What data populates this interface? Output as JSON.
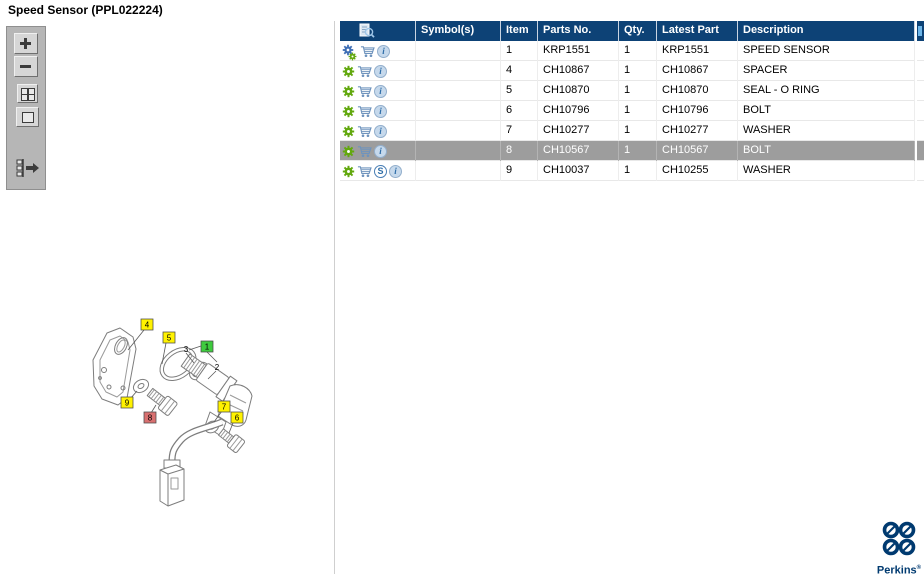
{
  "window": {
    "title": "Speed Sensor (PPL022224)"
  },
  "toolbar": {
    "buttons": [
      {
        "name": "zoom-in"
      },
      {
        "name": "zoom-out"
      },
      {
        "name": "tile-view"
      },
      {
        "name": "fit-view"
      },
      {
        "name": "expand-list"
      }
    ]
  },
  "table": {
    "header_icon": "parts-lookup-icon",
    "columns": [
      {
        "key": "icons",
        "label": ""
      },
      {
        "key": "symbol",
        "label": "Symbol(s)"
      },
      {
        "key": "item",
        "label": "Item"
      },
      {
        "key": "parts_no",
        "label": "Parts No."
      },
      {
        "key": "qty",
        "label": "Qty."
      },
      {
        "key": "latest_part_no",
        "label": "Latest Part No."
      },
      {
        "key": "description",
        "label": "Description"
      }
    ],
    "rows": [
      {
        "icons": [
          "gear-multi",
          "cart",
          "info"
        ],
        "symbol": "",
        "item": "1",
        "parts_no": "KRP1551",
        "qty": "1",
        "latest_part_no": "KRP1551",
        "description": "SPEED SENSOR",
        "selected": false
      },
      {
        "icons": [
          "gear",
          "cart",
          "info"
        ],
        "symbol": "",
        "item": "4",
        "parts_no": "CH10867",
        "qty": "1",
        "latest_part_no": "CH10867",
        "description": "SPACER",
        "selected": false
      },
      {
        "icons": [
          "gear",
          "cart",
          "info"
        ],
        "symbol": "",
        "item": "5",
        "parts_no": "CH10870",
        "qty": "1",
        "latest_part_no": "CH10870",
        "description": "SEAL - O RING",
        "selected": false
      },
      {
        "icons": [
          "gear",
          "cart",
          "info"
        ],
        "symbol": "",
        "item": "6",
        "parts_no": "CH10796",
        "qty": "1",
        "latest_part_no": "CH10796",
        "description": "BOLT",
        "selected": false
      },
      {
        "icons": [
          "gear",
          "cart",
          "info"
        ],
        "symbol": "",
        "item": "7",
        "parts_no": "CH10277",
        "qty": "1",
        "latest_part_no": "CH10277",
        "description": "WASHER",
        "selected": false
      },
      {
        "icons": [
          "gear",
          "cart",
          "info"
        ],
        "symbol": "",
        "item": "8",
        "parts_no": "CH10567",
        "qty": "1",
        "latest_part_no": "CH10567",
        "description": "BOLT",
        "selected": true
      },
      {
        "icons": [
          "gear",
          "cart",
          "s-badge",
          "info"
        ],
        "symbol": "",
        "item": "9",
        "parts_no": "CH10037",
        "qty": "1",
        "latest_part_no": "CH10255",
        "description": "WASHER",
        "selected": false
      }
    ]
  },
  "diagram": {
    "callouts": [
      {
        "text": "4",
        "style": "yellow"
      },
      {
        "text": "5",
        "style": "yellow"
      },
      {
        "text": "3",
        "style": "plain"
      },
      {
        "text": "1",
        "style": "green"
      },
      {
        "text": "2",
        "style": "plain"
      },
      {
        "text": "9",
        "style": "yellow"
      },
      {
        "text": "8",
        "style": "red"
      },
      {
        "text": "7",
        "style": "yellow"
      },
      {
        "text": "6",
        "style": "yellow"
      }
    ]
  },
  "logo": {
    "text": "Perkins",
    "mark": "®"
  },
  "colors": {
    "header_bg": "#0d4276",
    "selected_row": "#9d9d9d",
    "label_yellow": "#fff200",
    "label_green": "#3ecb3e",
    "label_red": "#d97070",
    "gear_green": "#63a80f",
    "gear_blue": "#3f6fb5",
    "cart_blue": "#6e93bd",
    "logo_navy": "#003a70"
  }
}
